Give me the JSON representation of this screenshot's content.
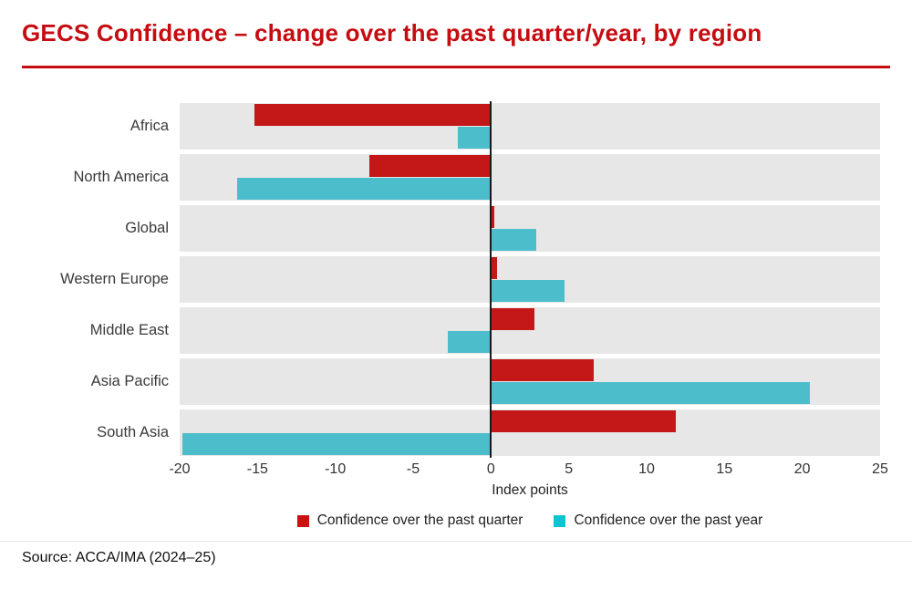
{
  "page": {
    "title": "GECS Confidence – change over the past quarter/year, by region",
    "source": "Source: ACCA/IMA (2024–25)"
  },
  "colors": {
    "accent_red": "#c60c11",
    "band_gray": "#e7e7e7",
    "zero_line": "#1a1a1a"
  },
  "chart_data": {
    "type": "bar",
    "orientation": "horizontal",
    "title": "GECS Confidence – change over the past quarter/year, by region",
    "categories": [
      "Africa",
      "North America",
      "Global",
      "Western Europe",
      "Middle East",
      "Asia Pacific",
      "South Asia"
    ],
    "series": [
      {
        "name": "Confidence over the past quarter",
        "color": "#c41718",
        "legend_color": "#cc1111",
        "values": [
          -15.2,
          -7.8,
          0.2,
          0.4,
          2.8,
          6.6,
          11.9
        ]
      },
      {
        "name": "Confidence over the past year",
        "color": "#4cbdcb",
        "legend_color": "#0bc5d1",
        "values": [
          -2.1,
          -16.3,
          2.9,
          4.7,
          -2.8,
          20.5,
          -19.8
        ]
      }
    ],
    "xlabel": "Index points",
    "xlim": [
      -20,
      25
    ],
    "xticks": [
      -20,
      -15,
      -10,
      -5,
      0,
      5,
      10,
      15,
      20,
      25
    ],
    "legend_position": "bottom",
    "grid": false,
    "row_background": "light-gray bands with white gaps",
    "zero_axis_line": true
  }
}
